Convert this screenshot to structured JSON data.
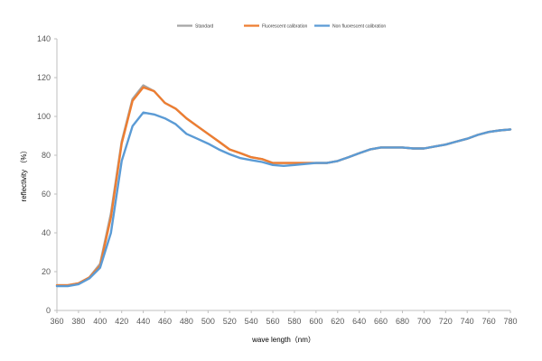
{
  "chart_data": {
    "type": "line",
    "xlabel": "wave length（nm）",
    "ylabel": "reflectivity （%）",
    "xlim": [
      360,
      780
    ],
    "ylim": [
      0,
      140
    ],
    "x_ticks": [
      "360",
      "380",
      "400",
      "420",
      "440",
      "460",
      "480",
      "500",
      "520",
      "540",
      "560",
      "580",
      "600",
      "620",
      "640",
      "660",
      "680",
      "700",
      "720",
      "740",
      "760",
      "780"
    ],
    "y_ticks": [
      "0",
      "20",
      "40",
      "60",
      "80",
      "100",
      "120",
      "140"
    ],
    "grid": false,
    "legend_position": "top-center",
    "x": [
      360,
      370,
      380,
      390,
      400,
      410,
      420,
      430,
      440,
      450,
      460,
      470,
      480,
      490,
      500,
      510,
      520,
      530,
      540,
      550,
      560,
      570,
      580,
      590,
      600,
      610,
      620,
      630,
      640,
      650,
      660,
      670,
      680,
      690,
      700,
      710,
      720,
      730,
      740,
      750,
      760,
      770,
      780
    ],
    "series": [
      {
        "name": "Standard",
        "color": "#a5a5a5",
        "values": [
          13,
          13,
          14,
          17,
          24,
          50,
          87,
          109,
          116,
          113,
          107,
          104,
          99,
          95,
          91,
          87,
          83,
          81,
          79,
          78,
          76,
          76,
          76,
          76,
          76,
          76,
          77,
          79,
          81,
          83,
          84,
          84,
          84,
          83.5,
          83.5,
          84.5,
          85.5,
          87,
          88.5,
          90.5,
          92,
          92.8,
          93.3
        ]
      },
      {
        "name": "Fluorescent calibration",
        "color": "#ed7d31",
        "values": [
          13,
          13,
          14,
          17,
          23,
          48,
          86,
          108,
          115,
          113,
          107,
          104,
          99,
          95,
          91,
          87,
          83,
          81,
          79,
          78,
          76,
          76,
          76,
          76,
          76,
          76,
          77,
          79,
          81,
          83,
          84,
          84,
          84,
          83.5,
          83.5,
          84.5,
          85.5,
          87,
          88.5,
          90.5,
          92,
          92.8,
          93.3
        ]
      },
      {
        "name": "Non fluorescent calibration",
        "color": "#5b9bd5",
        "values": [
          12.5,
          12.5,
          13.5,
          16.5,
          22,
          40,
          77,
          95,
          102,
          101,
          99,
          96,
          91,
          88.5,
          86,
          83,
          80.5,
          78.5,
          77.5,
          76.5,
          75,
          74.5,
          75,
          75.5,
          76,
          76,
          77,
          79,
          81,
          83,
          84,
          84,
          84,
          83.5,
          83.5,
          84.5,
          85.5,
          87,
          88.5,
          90.5,
          92,
          92.8,
          93.3
        ]
      }
    ]
  }
}
